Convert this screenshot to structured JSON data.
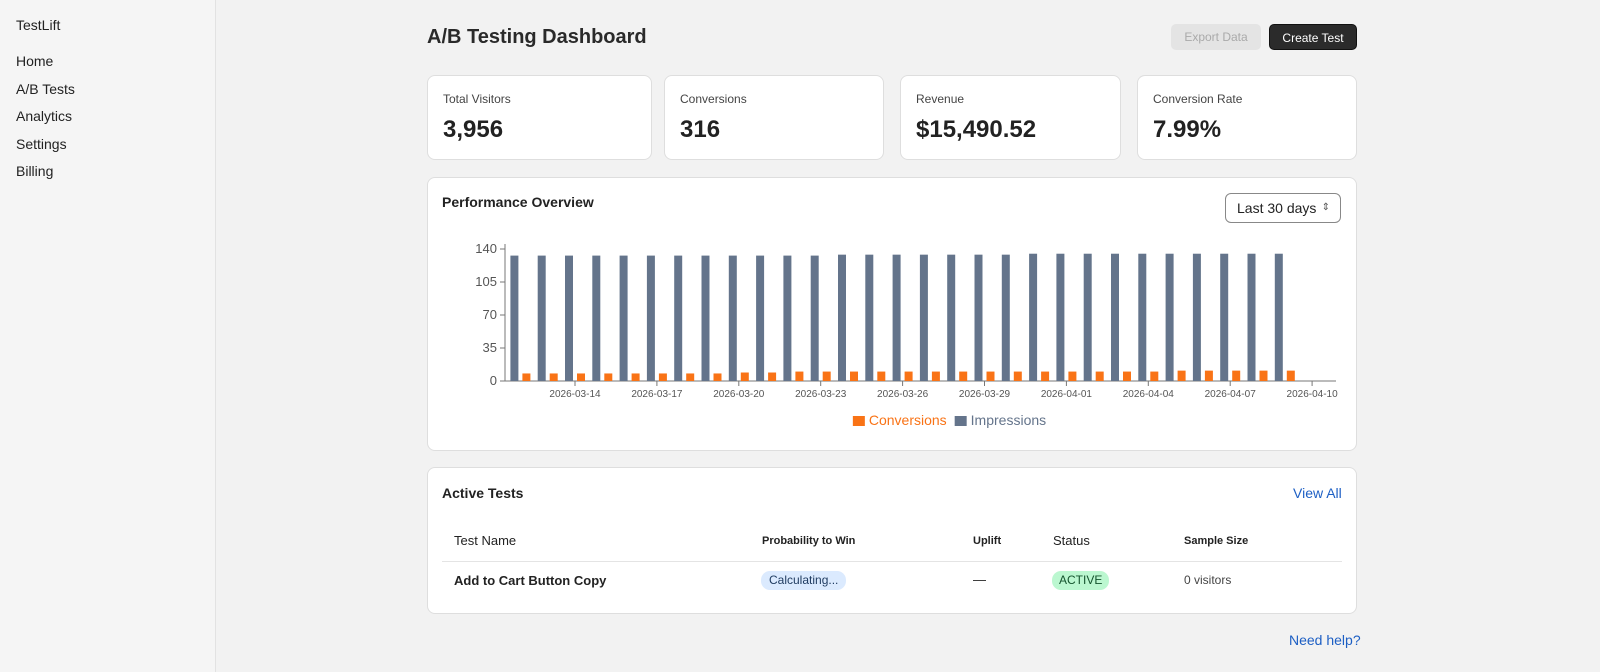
{
  "sidebar": {
    "brand": "TestLift",
    "nav": [
      "Home",
      "A/B Tests",
      "Analytics",
      "Settings",
      "Billing"
    ]
  },
  "header": {
    "title": "A/B Testing Dashboard",
    "buttons": [
      "Export Data",
      "Create Test"
    ]
  },
  "stats": [
    {
      "label": "Total Visitors",
      "value": "3,956"
    },
    {
      "label": "Conversions",
      "value": "316"
    },
    {
      "label": "Revenue",
      "value": "$15,490.52"
    },
    {
      "label": "Conversion Rate",
      "value": "7.99%"
    }
  ],
  "performance": {
    "title": "Performance Overview",
    "range": "Last 30 days"
  },
  "chart_data": {
    "type": "bar",
    "categories": [
      null,
      null,
      "2026-03-14",
      null,
      null,
      "2026-03-17",
      null,
      null,
      "2026-03-20",
      null,
      null,
      "2026-03-23",
      null,
      null,
      "2026-03-26",
      null,
      null,
      "2026-03-29",
      null,
      null,
      "2026-04-01",
      null,
      null,
      "2026-04-04",
      null,
      null,
      "2026-04-07",
      null,
      null,
      "2026-04-10"
    ],
    "series": [
      {
        "name": "Conversions",
        "color": "#f97316",
        "values": [
          8,
          8,
          8,
          8,
          8,
          8,
          8,
          8,
          9,
          9,
          10,
          10,
          10,
          10,
          10,
          10,
          10,
          10,
          10,
          10,
          10,
          10,
          10,
          10,
          11,
          11,
          11,
          11,
          11,
          null
        ]
      },
      {
        "name": "Impressions",
        "color": "#64748b",
        "values": [
          133,
          133,
          133,
          133,
          133,
          133,
          133,
          133,
          133,
          133,
          133,
          133,
          134,
          134,
          134,
          134,
          134,
          134,
          134,
          135,
          135,
          135,
          135,
          135,
          135,
          135,
          135,
          135,
          135,
          null
        ]
      }
    ],
    "ylim": [
      0,
      140
    ],
    "yticks": [
      0,
      35,
      70,
      105,
      140
    ],
    "legend": "bottom"
  },
  "tests": {
    "title": "Active Tests",
    "link": "View All",
    "columns": [
      "Test Name",
      "Probability to Win",
      "Uplift",
      "Status",
      "Sample Size"
    ],
    "rows": [
      [
        "Add to Cart Button Copy",
        "Calculating...",
        "—",
        "ACTIVE",
        "0 visitors"
      ]
    ]
  },
  "footer": {
    "help": "Need help?"
  }
}
